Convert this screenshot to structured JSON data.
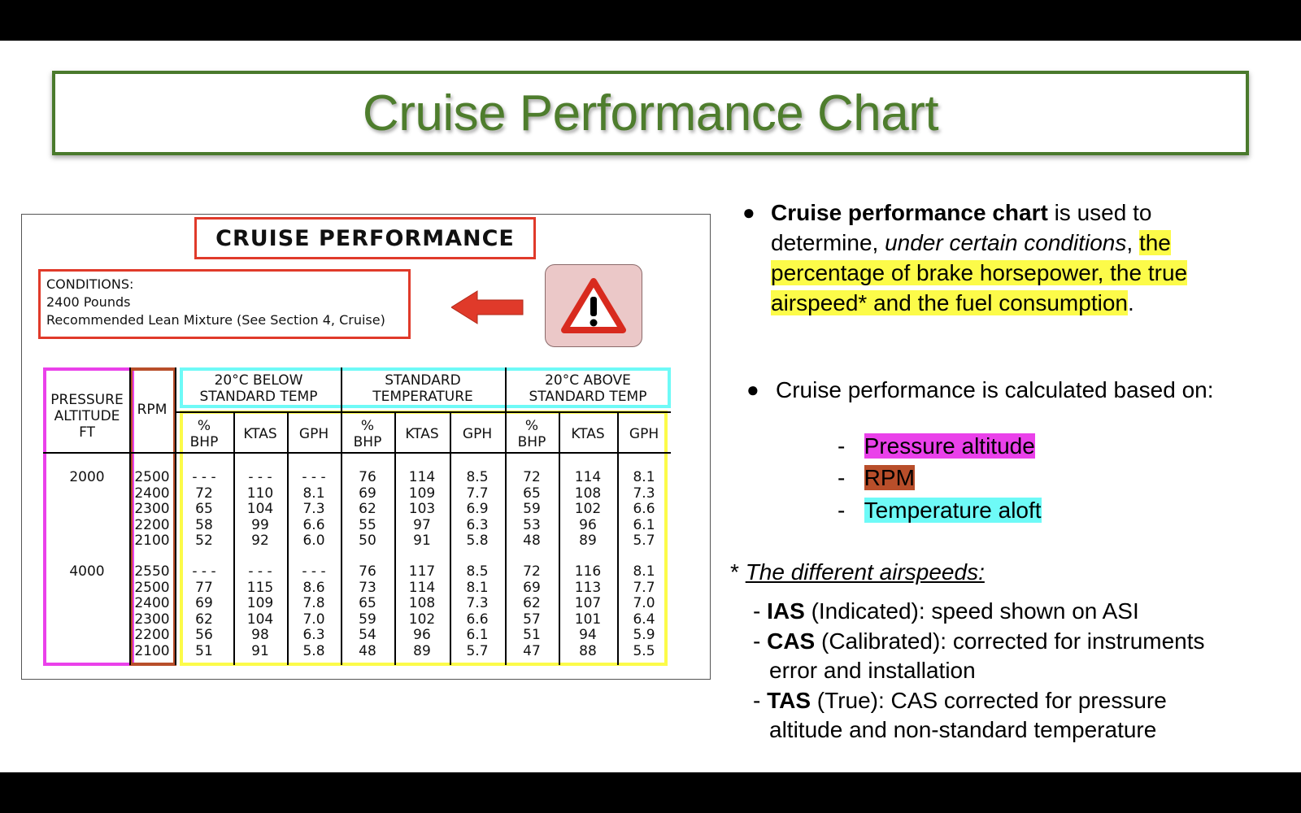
{
  "slide_title": "Cruise Performance Chart",
  "chart": {
    "title": "CRUISE PERFORMANCE",
    "conditions": [
      "CONDITIONS:",
      "2400 Pounds",
      "Recommended Lean Mixture (See Section 4, Cruise)"
    ],
    "headers": {
      "pressure_altitude": [
        "PRESSURE",
        "ALTITUDE",
        "FT"
      ],
      "rpm": "RPM",
      "group_below": [
        "20°C BELOW",
        "STANDARD TEMP"
      ],
      "group_std": [
        "STANDARD",
        "TEMPERATURE"
      ],
      "group_above": [
        "20°C ABOVE",
        "STANDARD TEMP"
      ],
      "bhp": [
        "%",
        "BHP"
      ],
      "ktas": "KTAS",
      "gph": "GPH"
    },
    "blocks": [
      {
        "altitude": "2000",
        "rows": [
          [
            "2500",
            "- - -",
            "- - -",
            "- - -",
            "76",
            "114",
            "8.5",
            "72",
            "114",
            "8.1"
          ],
          [
            "2400",
            "72",
            "110",
            "8.1",
            "69",
            "109",
            "7.7",
            "65",
            "108",
            "7.3"
          ],
          [
            "2300",
            "65",
            "104",
            "7.3",
            "62",
            "103",
            "6.9",
            "59",
            "102",
            "6.6"
          ],
          [
            "2200",
            "58",
            "99",
            "6.6",
            "55",
            "97",
            "6.3",
            "53",
            "96",
            "6.1"
          ],
          [
            "2100",
            "52",
            "92",
            "6.0",
            "50",
            "91",
            "5.8",
            "48",
            "89",
            "5.7"
          ]
        ]
      },
      {
        "altitude": "4000",
        "rows": [
          [
            "2550",
            "- - -",
            "- - -",
            "- - -",
            "76",
            "117",
            "8.5",
            "72",
            "116",
            "8.1"
          ],
          [
            "2500",
            "77",
            "115",
            "8.6",
            "73",
            "114",
            "8.1",
            "69",
            "113",
            "7.7"
          ],
          [
            "2400",
            "69",
            "109",
            "7.8",
            "65",
            "108",
            "7.3",
            "62",
            "107",
            "7.0"
          ],
          [
            "2300",
            "62",
            "104",
            "7.0",
            "59",
            "102",
            "6.6",
            "57",
            "101",
            "6.4"
          ],
          [
            "2200",
            "56",
            "98",
            "6.3",
            "54",
            "96",
            "6.1",
            "51",
            "94",
            "5.9"
          ],
          [
            "2100",
            "51",
            "91",
            "5.8",
            "48",
            "89",
            "5.7",
            "47",
            "88",
            "5.5"
          ]
        ]
      }
    ]
  },
  "bullet1": {
    "bold": "Cruise performance chart",
    "text1": " is used to",
    "text2": "determine, ",
    "italic": "under certain conditions",
    "text3": ", ",
    "hl1": "the",
    "hl2": "percentage of brake horsepower, the true",
    "hl3": "airspeed* and the fuel consumption",
    "end": "."
  },
  "bullet2": "Cruise performance is calculated based on:",
  "factors": [
    "Pressure altitude",
    "RPM",
    "Temperature aloft"
  ],
  "airspeeds": {
    "heading": "The different airspeeds:",
    "items": [
      {
        "bold": "IAS",
        "text": " (Indicated): speed shown on ASI"
      },
      {
        "bold": "CAS",
        "text": " (Calibrated): corrected for instruments",
        "text2": "error and installation"
      },
      {
        "bold": "TAS",
        "text": " (True): CAS corrected for pressure",
        "text2": "altitude and non-standard temperature"
      }
    ]
  },
  "colors": {
    "title_green": "#4e7d2d",
    "red": "#e03a2a",
    "magenta": "#ea41ea",
    "brown": "#b84e2a",
    "cyan": "#6efaf7",
    "yellow": "#fcfb49"
  },
  "icons": {
    "arrow": "left-arrow-icon",
    "warning": "warning-icon"
  }
}
